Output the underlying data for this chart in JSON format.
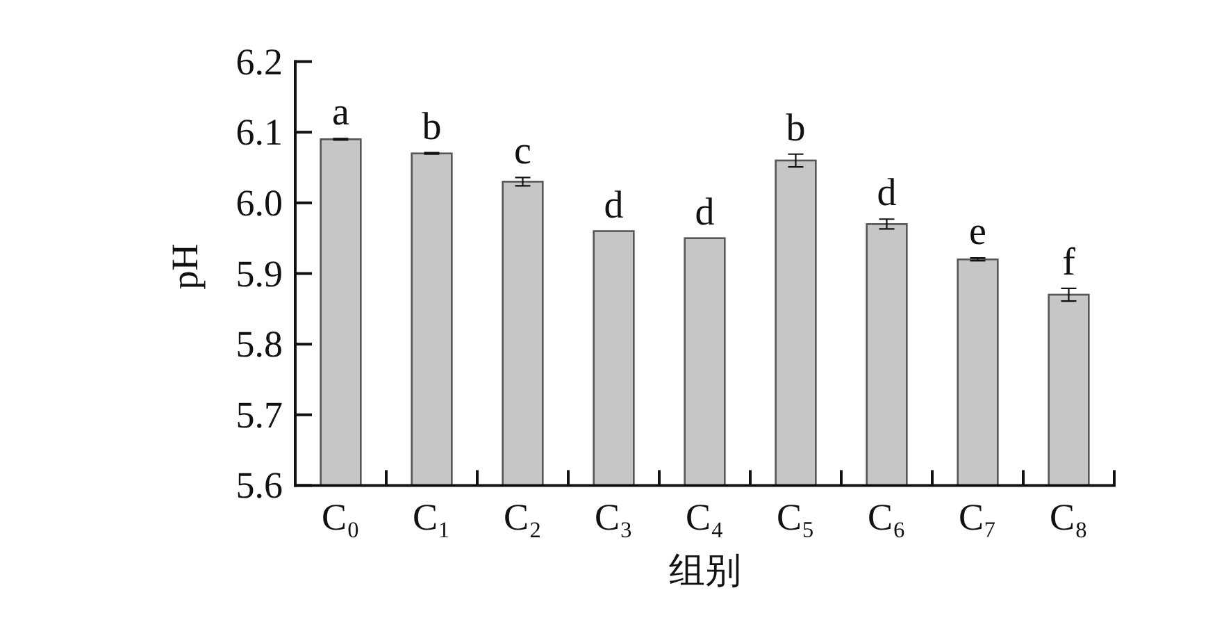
{
  "chart_data": {
    "type": "bar",
    "xlabel": "组别",
    "ylabel": "pH",
    "categories": [
      "C₀",
      "C₁",
      "C₂",
      "C₃",
      "C₄",
      "C₅",
      "C₆",
      "C₇",
      "C₈"
    ],
    "values": [
      6.09,
      6.07,
      6.03,
      5.96,
      5.95,
      6.06,
      5.97,
      5.92,
      5.87
    ],
    "errors": [
      0.001,
      0.001,
      0.006,
      null,
      null,
      0.009,
      0.007,
      0.002,
      0.009
    ],
    "color": "#c6c6c6",
    "ylim": [
      5.6,
      6.2
    ],
    "yticks": [
      5.6,
      5.7,
      5.8,
      5.9,
      {
        "value": 6.0,
        "label": "6.0"
      },
      6.1,
      6.2
    ],
    "annotations": [
      {
        "text": "a",
        "x": "C₀",
        "y": 6.09
      },
      {
        "text": "b",
        "x": "C₁",
        "y": 6.07
      },
      {
        "text": "c",
        "x": "C₂",
        "y": 6.03
      },
      {
        "text": "d",
        "x": "C₃",
        "y": 5.96
      },
      {
        "text": "d",
        "x": "C₄",
        "y": 5.95
      },
      {
        "text": "b",
        "x": "C₅",
        "y": 6.06
      },
      {
        "text": "d",
        "x": "C₆",
        "y": 5.97
      },
      {
        "text": "e",
        "x": "C₇",
        "y": 5.92
      },
      {
        "text": "f",
        "x": "C₈",
        "y": 5.87
      }
    ]
  }
}
